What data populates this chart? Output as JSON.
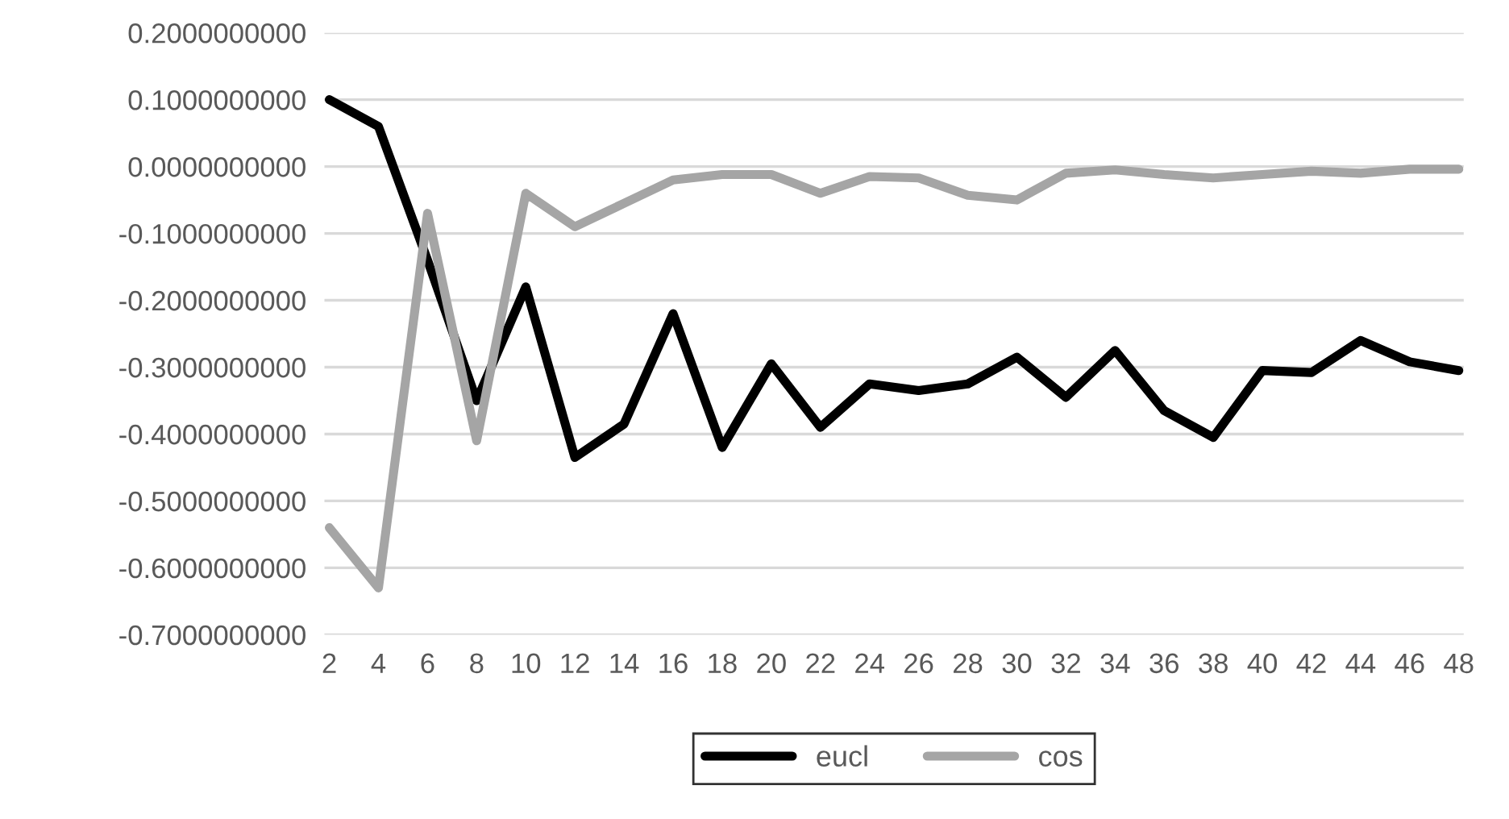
{
  "chart_data": {
    "type": "line",
    "categories": [
      "2",
      "4",
      "6",
      "8",
      "10",
      "12",
      "14",
      "16",
      "18",
      "20",
      "22",
      "24",
      "26",
      "28",
      "30",
      "32",
      "34",
      "36",
      "38",
      "40",
      "42",
      "44",
      "46",
      "48"
    ],
    "series": [
      {
        "name": "eucl",
        "color": "#000000",
        "values": [
          0.1,
          0.06,
          -0.14,
          -0.35,
          -0.18,
          -0.435,
          -0.385,
          -0.22,
          -0.42,
          -0.295,
          -0.39,
          -0.325,
          -0.335,
          -0.325,
          -0.285,
          -0.345,
          -0.275,
          -0.365,
          -0.405,
          -0.305,
          -0.308,
          -0.26,
          -0.292,
          -0.305
        ]
      },
      {
        "name": "cos",
        "color": "#a5a5a5",
        "values": [
          -0.54,
          -0.63,
          -0.07,
          -0.41,
          -0.04,
          -0.09,
          -0.055,
          -0.02,
          -0.012,
          -0.012,
          -0.04,
          -0.015,
          -0.017,
          -0.043,
          -0.05,
          -0.01,
          -0.005,
          -0.012,
          -0.017,
          -0.012,
          -0.007,
          -0.01,
          -0.004,
          -0.004
        ]
      }
    ],
    "ylim": [
      -0.7,
      0.2
    ],
    "yticks": [
      {
        "value": 0.2,
        "label": "0.2000000000"
      },
      {
        "value": 0.1,
        "label": "0.1000000000"
      },
      {
        "value": 0,
        "label": "0.0000000000"
      },
      {
        "value": -0.1,
        "label": "-0.1000000000"
      },
      {
        "value": -0.2,
        "label": "-0.2000000000"
      },
      {
        "value": -0.3,
        "label": "-0.3000000000"
      },
      {
        "value": -0.4,
        "label": "-0.4000000000"
      },
      {
        "value": -0.5,
        "label": "-0.5000000000"
      },
      {
        "value": -0.6,
        "label": "-0.6000000000"
      },
      {
        "value": -0.7,
        "label": "-0.7000000000"
      }
    ],
    "grid": "y",
    "legend": "bottom",
    "marker": "none",
    "line_style": "solid"
  }
}
